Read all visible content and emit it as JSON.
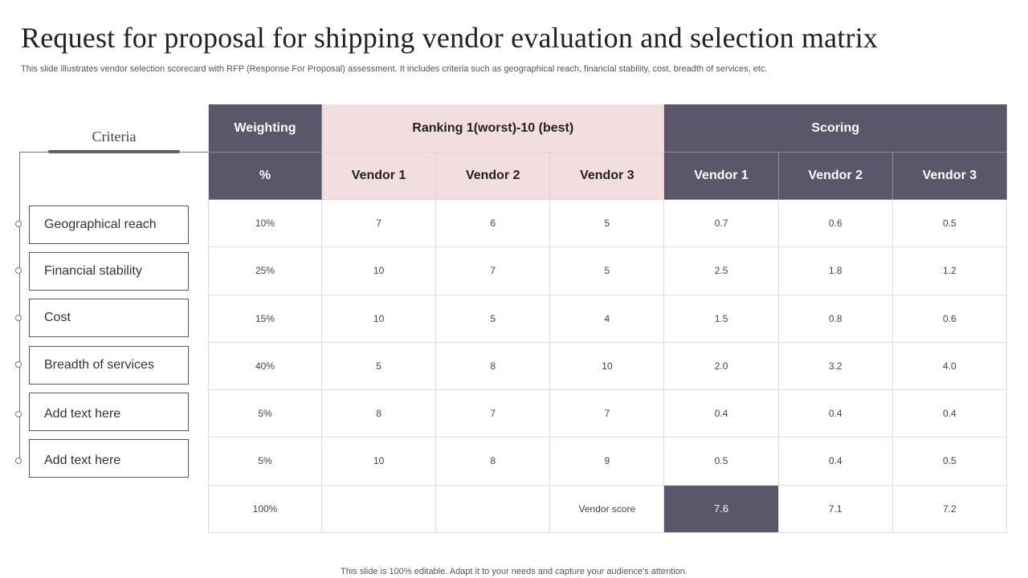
{
  "title": "Request for proposal for shipping vendor evaluation and selection matrix",
  "subtitle": "This slide illustrates vendor selection scorecard with RFP (Response For Proposal) assessment. It includes criteria such as geographical reach, financial stability, cost, breadth of services, etc.",
  "criteria": {
    "heading": "Criteria",
    "items": [
      "Geographical reach",
      "Financial stability",
      "Cost",
      "Breadth of services",
      "Add text here",
      "Add text here"
    ]
  },
  "table": {
    "groups": {
      "weighting": "Weighting",
      "ranking": "Ranking 1(worst)-10 (best)",
      "scoring": "Scoring"
    },
    "subheaders": [
      "%",
      "Vendor 1",
      "Vendor 2",
      "Vendor 3",
      "Vendor 1",
      "Vendor 2",
      "Vendor 3"
    ],
    "rows": [
      [
        "10%",
        "7",
        "6",
        "5",
        "0.7",
        "0.6",
        "0.5"
      ],
      [
        "25%",
        "10",
        "7",
        "5",
        "2.5",
        "1.8",
        "1.2"
      ],
      [
        "15%",
        "10",
        "5",
        "4",
        "1.5",
        "0.8",
        "0.6"
      ],
      [
        "40%",
        "5",
        "8",
        "10",
        "2.0",
        "3.2",
        "4.0"
      ],
      [
        "5%",
        "8",
        "7",
        "7",
        "0.4",
        "0.4",
        "0.4"
      ],
      [
        "5%",
        "10",
        "8",
        "9",
        "0.5",
        "0.4",
        "0.5"
      ]
    ],
    "total": {
      "weight": "100%",
      "label": "Vendor score",
      "scores": [
        "7.6",
        "7.1",
        "7.2"
      ]
    }
  },
  "colors": {
    "header_dark": "#5b5669",
    "header_pink": "#f2dede"
  },
  "footer": "This slide is 100% editable. Adapt it to your needs and capture your audience's attention."
}
